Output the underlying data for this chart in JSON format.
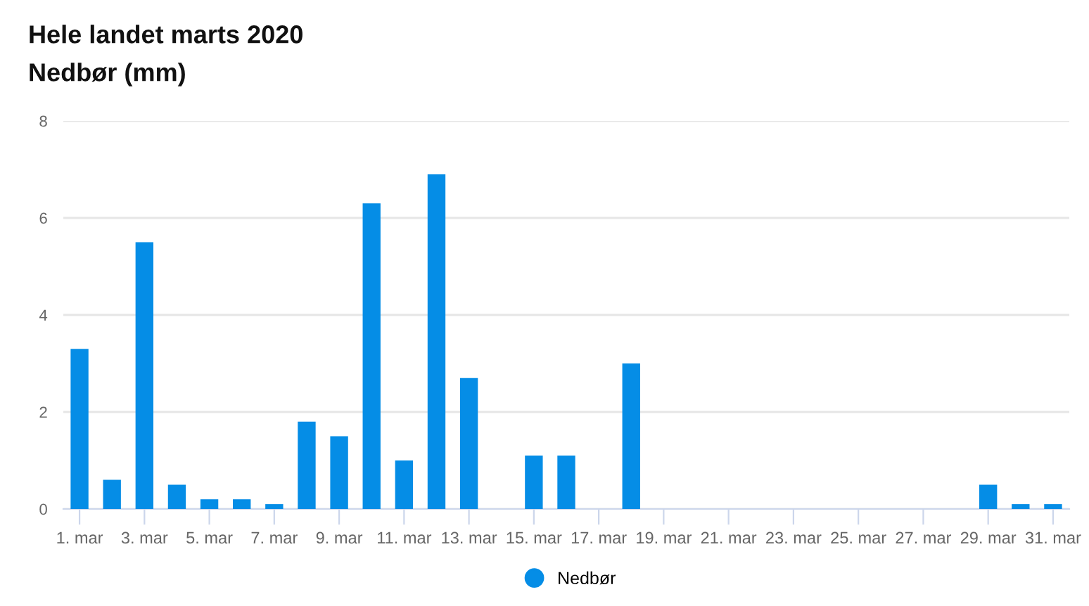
{
  "chart_data": {
    "type": "bar",
    "title": "Hele landet marts 2020",
    "subtitle": "Nedbør (mm)",
    "categories": [
      "1. mar",
      null,
      "3. mar",
      null,
      "5. mar",
      null,
      "7. mar",
      null,
      "9. mar",
      null,
      "11. mar",
      null,
      "13. mar",
      null,
      "15. mar",
      null,
      "17. mar",
      null,
      "19. mar",
      null,
      "21. mar",
      null,
      "23. mar",
      null,
      "25. mar",
      null,
      "27. mar",
      null,
      "29. mar",
      null,
      "31. mar"
    ],
    "series": [
      {
        "name": "Nedbør",
        "color": "#058de6",
        "values": [
          3.3,
          0.6,
          5.5,
          0.5,
          0.2,
          0.2,
          0.1,
          1.8,
          1.5,
          6.3,
          1.0,
          6.9,
          2.7,
          0,
          1.1,
          1.1,
          0,
          3.0,
          0,
          0,
          0,
          0,
          0,
          0,
          0,
          0,
          0,
          0,
          0.5,
          0.1,
          0.1
        ]
      }
    ],
    "ylim": [
      0,
      8
    ],
    "yticks": [
      0,
      2,
      4,
      6,
      8
    ],
    "grid": "y",
    "legend": "bottom"
  }
}
